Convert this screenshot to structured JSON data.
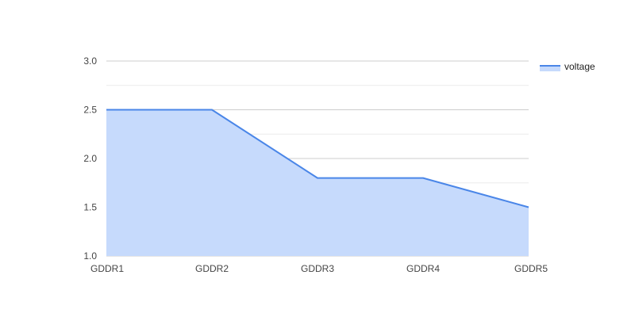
{
  "chart_data": {
    "type": "area",
    "categories": [
      "GDDR1",
      "GDDR2",
      "GDDR3",
      "GDDR4",
      "GDDR5"
    ],
    "series": [
      {
        "name": "voltage",
        "values": [
          2.5,
          2.5,
          1.8,
          1.8,
          1.5
        ]
      }
    ],
    "title": "",
    "xlabel": "",
    "ylabel": "",
    "ylim": [
      1.0,
      3.0
    ],
    "yticks": [
      "1.0",
      "1.5",
      "2.0",
      "2.5",
      "3.0"
    ],
    "grid": true,
    "legend_position": "top-right",
    "colors": {
      "line": "#4a86e8",
      "fill": "#c6dafc",
      "major_grid": "#cccccc",
      "minor_grid": "#ebebeb"
    }
  }
}
